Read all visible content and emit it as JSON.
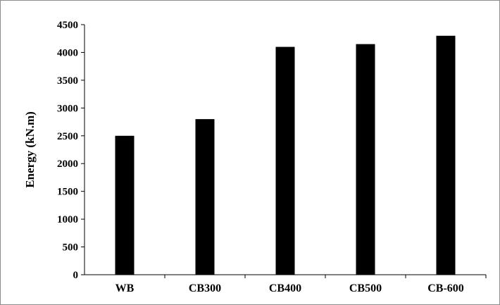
{
  "chart_data": {
    "type": "bar",
    "categories": [
      "WB",
      "CB300",
      "CB400",
      "CB500",
      "CB-600"
    ],
    "series": [
      {
        "values": [
          2500,
          2800,
          4100,
          4150,
          4300
        ]
      }
    ],
    "title": "",
    "xlabel": "",
    "ylabel": "Energy (kN.m)",
    "ylim": [
      0,
      4500
    ],
    "yticks": [
      0,
      500,
      1000,
      1500,
      2000,
      2500,
      3000,
      3500,
      4000,
      4500
    ],
    "grid": false,
    "legend": "none",
    "bar_color": "#000000"
  }
}
